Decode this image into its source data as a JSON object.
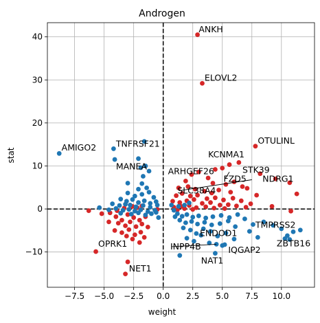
{
  "chart_data": {
    "type": "scatter",
    "title": "Androgen",
    "xlabel": "weight",
    "ylabel": "stat",
    "xlim": [
      -9.8,
      12.8
    ],
    "ylim": [
      -18.2,
      43.3
    ],
    "x_ticks": [
      -7.5,
      -5.0,
      -2.5,
      0.0,
      2.5,
      5.0,
      7.5,
      10.0
    ],
    "x_tick_labels": [
      "−7.5",
      "−5.0",
      "−2.5",
      "0.0",
      "2.5",
      "5.0",
      "7.5",
      "10.0"
    ],
    "y_ticks": [
      -10,
      0,
      10,
      20,
      30,
      40
    ],
    "y_tick_labels": [
      "−10",
      "0",
      "10",
      "20",
      "30",
      "40"
    ],
    "grid": true,
    "reference_lines": {
      "x": 0,
      "y": 0,
      "style": "dashed",
      "color": "#000000"
    },
    "series": [
      {
        "color": "#d62728",
        "points": [
          [
            2.9,
            40.5
          ],
          [
            3.3,
            29.2
          ],
          [
            7.8,
            14.6
          ],
          [
            6.4,
            10.8
          ],
          [
            5.6,
            10.3
          ],
          [
            5.0,
            9.5
          ],
          [
            4.4,
            9.2
          ],
          [
            10.7,
            6.1
          ],
          [
            8.2,
            8.2
          ],
          [
            9.5,
            7.0
          ],
          [
            11.3,
            3.5
          ],
          [
            10.8,
            -0.5
          ],
          [
            7.9,
            3.2
          ],
          [
            9.2,
            0.6
          ],
          [
            2.4,
            8.0
          ],
          [
            3.0,
            8.6
          ],
          [
            1.9,
            6.5
          ],
          [
            3.8,
            7.2
          ],
          [
            4.2,
            6.0
          ],
          [
            5.3,
            5.7
          ],
          [
            6.0,
            6.3
          ],
          [
            6.7,
            5.2
          ],
          [
            7.1,
            4.8
          ],
          [
            5.7,
            3.9
          ],
          [
            4.7,
            4.4
          ],
          [
            1.3,
            4.9
          ],
          [
            2.1,
            5.2
          ],
          [
            2.7,
            4.6
          ],
          [
            3.5,
            4.1
          ],
          [
            4.1,
            3.7
          ],
          [
            1.1,
            3.1
          ],
          [
            1.6,
            3.6
          ],
          [
            2.3,
            3.0
          ],
          [
            2.9,
            3.2
          ],
          [
            3.7,
            2.4
          ],
          [
            4.4,
            2.6
          ],
          [
            5.1,
            2.1
          ],
          [
            5.9,
            2.5
          ],
          [
            6.6,
            1.9
          ],
          [
            7.4,
            1.2
          ],
          [
            0.8,
            1.8
          ],
          [
            1.4,
            1.5
          ],
          [
            2.0,
            1.9
          ],
          [
            2.6,
            2.2
          ],
          [
            3.3,
            1.3
          ],
          [
            4.0,
            1.5
          ],
          [
            4.8,
            0.9
          ],
          [
            5.5,
            1.0
          ],
          [
            6.2,
            0.7
          ],
          [
            7.0,
            0.4
          ],
          [
            0.9,
            0.4
          ],
          [
            1.5,
            0.6
          ],
          [
            2.2,
            0.8
          ],
          [
            2.8,
            0.3
          ],
          [
            3.6,
            0.5
          ],
          [
            4.3,
            0.2
          ],
          [
            5.2,
            0.1
          ],
          [
            1.2,
            -0.2
          ],
          [
            1.8,
            0.1
          ],
          [
            2.5,
            -0.1
          ],
          [
            -0.5,
            -0.1
          ],
          [
            -2.6,
            0.6
          ],
          [
            -2.2,
            0.3
          ],
          [
            -1.8,
            0.7
          ],
          [
            -3.3,
            0.2
          ],
          [
            -3.9,
            -0.4
          ],
          [
            -4.5,
            -0.9
          ],
          [
            -5.2,
            -1.1
          ],
          [
            -6.3,
            -0.4
          ],
          [
            -4.0,
            -1.8
          ],
          [
            -3.5,
            -2.6
          ],
          [
            -3.0,
            -1.3
          ],
          [
            -2.5,
            -2.0
          ],
          [
            -2.0,
            -2.6
          ],
          [
            -1.5,
            -1.8
          ],
          [
            -3.8,
            -3.3
          ],
          [
            -3.2,
            -3.9
          ],
          [
            -2.8,
            -3.0
          ],
          [
            -2.3,
            -4.1
          ],
          [
            -1.8,
            -3.5
          ],
          [
            -4.1,
            -5.0
          ],
          [
            -3.5,
            -5.5
          ],
          [
            -2.9,
            -4.8
          ],
          [
            -2.4,
            -6.0
          ],
          [
            -1.9,
            -5.4
          ],
          [
            -2.6,
            -7.0
          ],
          [
            -2.0,
            -7.8
          ],
          [
            -3.1,
            -6.3
          ],
          [
            -5.7,
            -9.9
          ],
          [
            -3.0,
            -12.3
          ],
          [
            -3.2,
            -15.1
          ],
          [
            -4.6,
            -3.0
          ],
          [
            -1.3,
            -4.2
          ],
          [
            -1.6,
            -6.6
          ]
        ]
      },
      {
        "color": "#1f77b4",
        "points": [
          [
            -8.8,
            12.9
          ],
          [
            -4.2,
            14.0
          ],
          [
            -1.6,
            15.7
          ],
          [
            -4.1,
            11.5
          ],
          [
            -2.1,
            11.7
          ],
          [
            -1.5,
            10.0
          ],
          [
            -1.9,
            9.6
          ],
          [
            -1.7,
            7.6
          ],
          [
            -1.2,
            8.8
          ],
          [
            -1.8,
            5.9
          ],
          [
            -3.0,
            6.0
          ],
          [
            -2.1,
            4.6
          ],
          [
            -1.4,
            4.9
          ],
          [
            -3.0,
            3.7
          ],
          [
            -2.4,
            3.0
          ],
          [
            -1.8,
            3.4
          ],
          [
            -1.2,
            3.9
          ],
          [
            -0.8,
            2.7
          ],
          [
            -3.6,
            2.3
          ],
          [
            -3.1,
            1.8
          ],
          [
            -2.6,
            2.2
          ],
          [
            -2.1,
            1.5
          ],
          [
            -1.6,
            1.9
          ],
          [
            -1.1,
            1.3
          ],
          [
            -0.6,
            1.7
          ],
          [
            -4.3,
            1.2
          ],
          [
            -3.7,
            0.8
          ],
          [
            -3.2,
            1.1
          ],
          [
            -2.8,
            0.9
          ],
          [
            -2.3,
            0.5
          ],
          [
            -1.7,
            0.8
          ],
          [
            -1.1,
            0.4
          ],
          [
            -0.5,
            0.9
          ],
          [
            -5.4,
            0.3
          ],
          [
            -4.6,
            -0.2
          ],
          [
            -4.0,
            0.1
          ],
          [
            -3.4,
            -0.3
          ],
          [
            -2.9,
            -0.1
          ],
          [
            -2.4,
            -0.5
          ],
          [
            -1.9,
            -0.2
          ],
          [
            -1.3,
            -0.6
          ],
          [
            -0.7,
            -0.3
          ],
          [
            -3.6,
            -1.0
          ],
          [
            -2.7,
            -1.2
          ],
          [
            -2.1,
            -0.9
          ],
          [
            -1.5,
            -1.4
          ],
          [
            -1.0,
            -1.1
          ],
          [
            -0.6,
            -0.8
          ],
          [
            -0.4,
            -2.0
          ],
          [
            1.2,
            -1.1
          ],
          [
            1.6,
            -1.7
          ],
          [
            2.0,
            -1.3
          ],
          [
            2.5,
            -1.9
          ],
          [
            3.0,
            -1.6
          ],
          [
            3.6,
            -2.1
          ],
          [
            4.2,
            -1.8
          ],
          [
            4.9,
            -1.5
          ],
          [
            5.6,
            -2.0
          ],
          [
            6.3,
            -1.3
          ],
          [
            1.4,
            -2.6
          ],
          [
            1.9,
            -3.2
          ],
          [
            2.4,
            -2.9
          ],
          [
            2.9,
            -3.5
          ],
          [
            3.5,
            -3.1
          ],
          [
            4.1,
            -3.7
          ],
          [
            4.8,
            -3.4
          ],
          [
            5.5,
            -2.8
          ],
          [
            6.1,
            -4.1
          ],
          [
            1.7,
            -4.4
          ],
          [
            2.3,
            -4.9
          ],
          [
            2.8,
            -5.7
          ],
          [
            3.4,
            -4.6
          ],
          [
            4.0,
            -5.2
          ],
          [
            4.6,
            -6.3
          ],
          [
            5.3,
            -5.6
          ],
          [
            6.0,
            -7.0
          ],
          [
            2.0,
            -6.8
          ],
          [
            2.6,
            -7.5
          ],
          [
            3.2,
            -6.1
          ],
          [
            3.9,
            -7.9
          ],
          [
            4.5,
            -8.2
          ],
          [
            5.0,
            -8.5
          ],
          [
            5.2,
            -8.3
          ],
          [
            4.4,
            -10.3
          ],
          [
            1.4,
            -10.8
          ],
          [
            7.6,
            -3.6
          ],
          [
            8.5,
            -3.0
          ],
          [
            9.3,
            -3.8
          ],
          [
            10.0,
            -4.6
          ],
          [
            10.5,
            -6.2
          ],
          [
            11.0,
            -5.3
          ],
          [
            11.6,
            -4.9
          ],
          [
            10.3,
            -6.9
          ],
          [
            10.7,
            -7.1
          ],
          [
            6.9,
            -2.3
          ],
          [
            7.3,
            -5.2
          ],
          [
            8.0,
            -6.6
          ],
          [
            0.9,
            -0.3
          ],
          [
            1.3,
            0.6
          ],
          [
            1.8,
            0.9
          ],
          [
            2.2,
            1.4
          ],
          [
            1.0,
            -1.8
          ],
          [
            0.7,
            0.9
          ]
        ]
      }
    ],
    "annotations": [
      {
        "text": "ANKH",
        "x": 2.9,
        "y": 40.5,
        "tx": 3.0,
        "ty": 41.1
      },
      {
        "text": "ELOVL2",
        "x": 3.3,
        "y": 29.2,
        "tx": 3.5,
        "ty": 29.8
      },
      {
        "text": "OTULINL",
        "x": 7.8,
        "y": 14.6,
        "tx": 8.0,
        "ty": 15.2
      },
      {
        "text": "KCNMA1",
        "x": 6.4,
        "y": 10.8,
        "tx": 3.8,
        "ty": 12.0
      },
      {
        "text": "STK39",
        "x": 6.4,
        "y": 10.8,
        "tx": 6.7,
        "ty": 8.4
      },
      {
        "text": "ARHGEF26",
        "x": 4.4,
        "y": 9.2,
        "tx": 0.4,
        "ty": 8.1
      },
      {
        "text": "NDRG1",
        "x": 10.7,
        "y": 6.1,
        "tx": 8.4,
        "ty": 6.3
      },
      {
        "text": "FZD5",
        "x": 5.6,
        "y": 8.6,
        "tx": 5.1,
        "ty": 6.3,
        "leader": true
      },
      {
        "text": "SLC38A4",
        "x": 7.5,
        "y": 6.8,
        "tx": 1.2,
        "ty": 3.6,
        "leader": true
      },
      {
        "text": "AMIGO2",
        "x": -8.8,
        "y": 12.9,
        "tx": -8.6,
        "ty": 13.6
      },
      {
        "text": "TNFRSF21",
        "x": -1.6,
        "y": 15.7,
        "tx": -4.0,
        "ty": 14.5
      },
      {
        "text": "MANEA",
        "x": -4.1,
        "y": 11.5,
        "tx": -4.0,
        "ty": 9.2
      },
      {
        "text": "TMPRSS2",
        "x": 11.6,
        "y": -4.9,
        "tx": 7.8,
        "ty": -4.4
      },
      {
        "text": "ZBTB16",
        "x": 10.7,
        "y": -7.1,
        "tx": 9.6,
        "ty": -8.7
      },
      {
        "text": "ENDOD1",
        "x": 4.6,
        "y": -6.3,
        "tx": 3.1,
        "ty": -6.3
      },
      {
        "text": "INPP4B",
        "x": 4.5,
        "y": -8.2,
        "tx": 0.6,
        "ty": -9.4,
        "leader": true
      },
      {
        "text": "IQGAP2",
        "x": 5.2,
        "y": -8.3,
        "tx": 5.5,
        "ty": -10.2
      },
      {
        "text": "NAT1",
        "x": 4.4,
        "y": -10.3,
        "tx": 3.2,
        "ty": -12.7
      },
      {
        "text": "OPRK1",
        "x": -5.7,
        "y": -9.9,
        "tx": -5.5,
        "ty": -8.8
      },
      {
        "text": "NET1",
        "x": -3.0,
        "y": -12.3,
        "tx": -2.9,
        "ty": -14.5
      }
    ]
  }
}
